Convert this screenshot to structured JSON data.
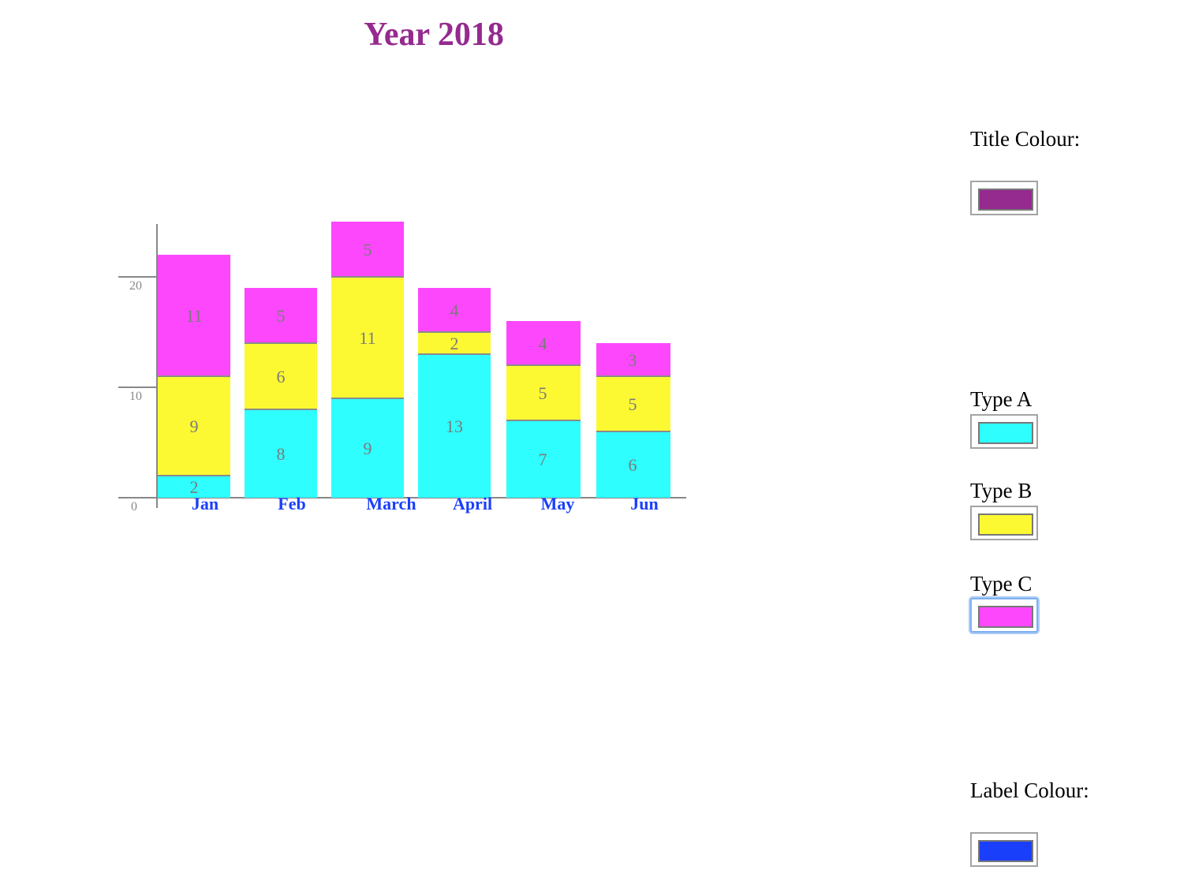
{
  "chart_data": {
    "type": "bar",
    "stacked": true,
    "title": "Year 2018",
    "categories": [
      "Jan",
      "Feb",
      "March",
      "April",
      "May",
      "Jun"
    ],
    "series": [
      {
        "name": "Type A",
        "values": [
          2,
          8,
          9,
          13,
          7,
          6
        ],
        "color": "#2efffe"
      },
      {
        "name": "Type B",
        "values": [
          9,
          6,
          11,
          2,
          5,
          5
        ],
        "color": "#fcf933"
      },
      {
        "name": "Type C",
        "values": [
          11,
          5,
          5,
          4,
          4,
          3
        ],
        "color": "#fd47fd"
      }
    ],
    "y_ticks": [
      "0",
      "10",
      "20"
    ],
    "ylim": [
      0,
      25
    ],
    "grid": false,
    "legend": "none"
  },
  "colors": {
    "title": "#952a8f",
    "label": "#1a3ffb",
    "axis": "#888888",
    "value_text": "#7a7a7a"
  },
  "controls": {
    "title_colour": {
      "label": "Title Colour:",
      "value": "#952a8f"
    },
    "type_a": {
      "label": "Type A",
      "value": "#2efffe"
    },
    "type_b": {
      "label": "Type B",
      "value": "#fcf933"
    },
    "type_c": {
      "label": "Type C",
      "value": "#fd47fd"
    },
    "label_colour": {
      "label": "Label Colour:",
      "value": "#1a3ffb"
    }
  }
}
